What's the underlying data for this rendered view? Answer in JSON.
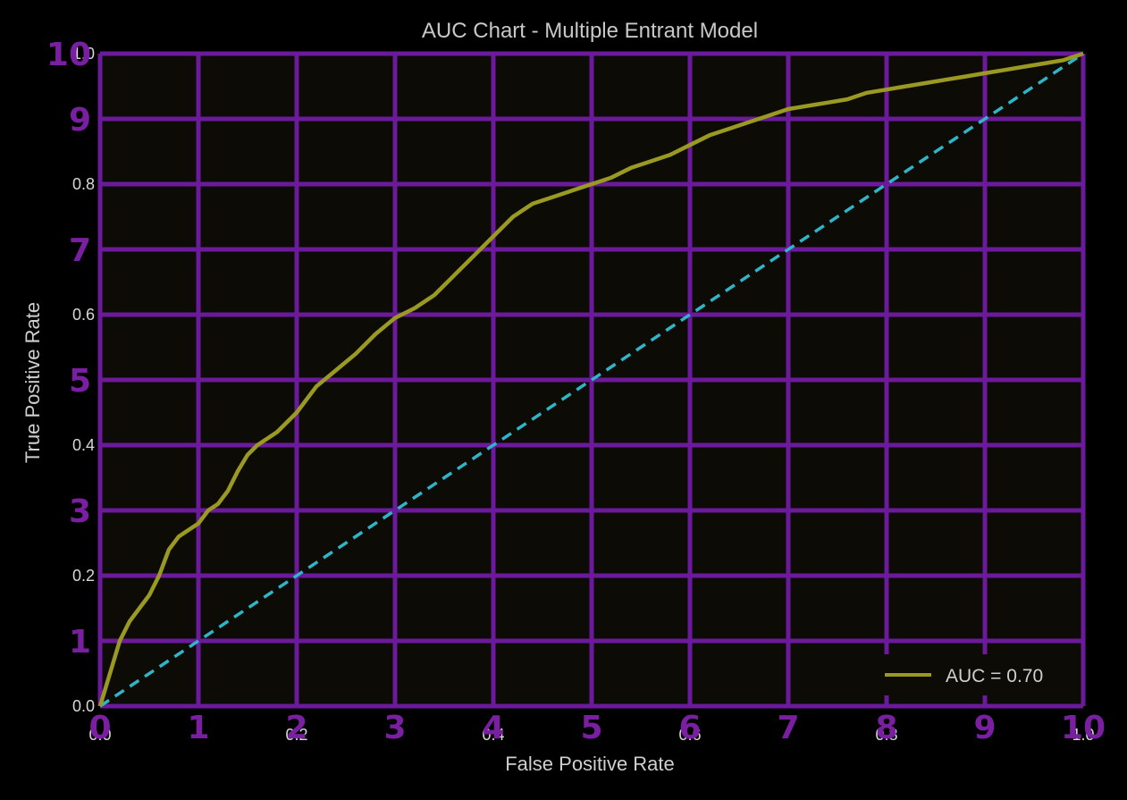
{
  "chart_data": {
    "type": "line",
    "title": "AUC Chart - Multiple Entrant Model",
    "xlabel": "False Positive Rate",
    "ylabel": "True Positive Rate",
    "xlim": [
      0,
      1
    ],
    "ylim": [
      0,
      1
    ],
    "grid": true,
    "legend_position": "bottom-right",
    "x_ticks": [
      "0.0",
      "0.2",
      "0.4",
      "0.6",
      "0.8",
      "1.0"
    ],
    "y_ticks": [
      "0.0",
      "0.2",
      "0.4",
      "0.6",
      "0.8",
      "1.0"
    ],
    "x_overlay_ticks": [
      "0",
      "1",
      "2",
      "3",
      "4",
      "5",
      "6",
      "7",
      "8",
      "9",
      "10"
    ],
    "y_overlay_ticks": [
      "1",
      "3",
      "5",
      "7",
      "9",
      "10"
    ],
    "series": [
      {
        "name": "AUC = 0.70",
        "color": "#9a9a22",
        "x": [
          0,
          0.01,
          0.02,
          0.03,
          0.04,
          0.05,
          0.06,
          0.07,
          0.08,
          0.09,
          0.1,
          0.11,
          0.12,
          0.13,
          0.14,
          0.15,
          0.16,
          0.18,
          0.2,
          0.22,
          0.24,
          0.26,
          0.28,
          0.3,
          0.32,
          0.34,
          0.36,
          0.38,
          0.4,
          0.42,
          0.44,
          0.46,
          0.48,
          0.5,
          0.52,
          0.54,
          0.56,
          0.58,
          0.6,
          0.62,
          0.64,
          0.66,
          0.68,
          0.7,
          0.72,
          0.74,
          0.76,
          0.78,
          0.8,
          0.82,
          0.84,
          0.86,
          0.88,
          0.9,
          0.92,
          0.94,
          0.96,
          0.98,
          1.0
        ],
        "y": [
          0,
          0.05,
          0.1,
          0.13,
          0.15,
          0.17,
          0.2,
          0.24,
          0.26,
          0.27,
          0.28,
          0.3,
          0.31,
          0.33,
          0.36,
          0.385,
          0.4,
          0.42,
          0.45,
          0.49,
          0.515,
          0.54,
          0.57,
          0.595,
          0.61,
          0.63,
          0.66,
          0.69,
          0.72,
          0.75,
          0.77,
          0.78,
          0.79,
          0.8,
          0.81,
          0.825,
          0.835,
          0.845,
          0.86,
          0.875,
          0.885,
          0.895,
          0.905,
          0.915,
          0.92,
          0.925,
          0.93,
          0.94,
          0.945,
          0.95,
          0.955,
          0.96,
          0.965,
          0.97,
          0.975,
          0.98,
          0.985,
          0.99,
          1.0
        ]
      },
      {
        "color": "#2fb5c8",
        "dashed": true,
        "x": [
          0,
          1
        ],
        "y": [
          0,
          1
        ]
      }
    ]
  },
  "colors": {
    "plot_background": "#0d0b06",
    "grid": "#6a1a9a",
    "overlay_ticks": "#7a1fa2"
  }
}
